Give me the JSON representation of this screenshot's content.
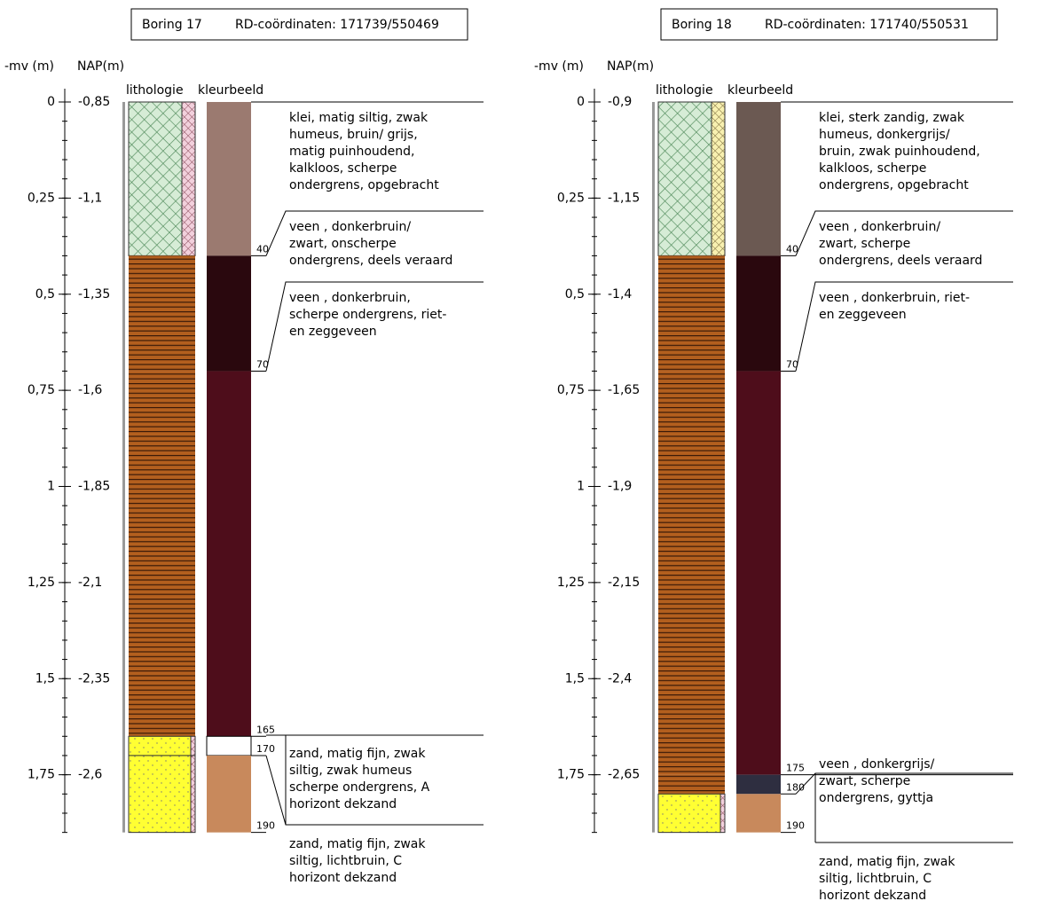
{
  "borings": [
    {
      "name": "Boring 17",
      "coords": "RD-coördinaten: 171739/550469",
      "mv_header": "-mv (m)",
      "nap_header": "NAP(m)",
      "lith_header": "lithologie",
      "color_header": "kleurbeeld",
      "mv_ticks": [
        "0",
        "0,25",
        "0,5",
        "0,75",
        "1",
        "1,25",
        "1,5",
        "1,75"
      ],
      "nap_ticks": [
        "-0,85",
        "-1,1",
        "-1,35",
        "-1,6",
        "-1,85",
        "-2,1",
        "-2,35",
        "-2,6"
      ],
      "layers": [
        {
          "bottom": 40,
          "lith": "clay-pink",
          "color": "#9b7a70"
        },
        {
          "bottom": 70,
          "lith": "peat",
          "color": "#2a080e"
        },
        {
          "bottom": 165,
          "lith": "peat",
          "color": "#4e0d1b"
        },
        {
          "bottom": 170,
          "lith": "sand-strip",
          "color": "#ffffff"
        },
        {
          "bottom": 190,
          "lith": "sand",
          "color": "#c8895c"
        }
      ],
      "descriptions": [
        [
          "klei, matig siltig, zwak",
          "humeus, bruin/ grijs,",
          "matig puinhoudend,",
          "kalkloos, scherpe",
          "ondergrens, opgebracht"
        ],
        [
          "veen , donkerbruin/",
          "zwart, onscherpe",
          "ondergrens, deels veraard"
        ],
        [
          "veen , donkerbruin,",
          "scherpe ondergrens, riet-",
          "en zeggeveen"
        ],
        [
          "zand, matig fijn, zwak",
          "siltig, zwak humeus",
          "scherpe ondergrens, A",
          "horizont dekzand"
        ],
        [
          "zand, matig fijn, zwak",
          "siltig, lichtbruin, C",
          "horizont dekzand"
        ]
      ]
    },
    {
      "name": "Boring 18",
      "coords": "RD-coördinaten: 171740/550531",
      "mv_header": "-mv (m)",
      "nap_header": "NAP(m)",
      "lith_header": "lithologie",
      "color_header": "kleurbeeld",
      "mv_ticks": [
        "0",
        "0,25",
        "0,5",
        "0,75",
        "1",
        "1,25",
        "1,5",
        "1,75"
      ],
      "nap_ticks": [
        "-0,9",
        "-1,15",
        "-1,4",
        "-1,65",
        "-1,9",
        "-2,15",
        "-2,4",
        "-2,65"
      ],
      "layers": [
        {
          "bottom": 40,
          "lith": "clay-yellow",
          "color": "#6b5952"
        },
        {
          "bottom": 70,
          "lith": "peat",
          "color": "#2a080e"
        },
        {
          "bottom": 175,
          "lith": "peat",
          "color": "#4e0d1b"
        },
        {
          "bottom": 180,
          "lith": "peat",
          "color": "#2e2e40"
        },
        {
          "bottom": 190,
          "lith": "sand",
          "color": "#c8895c"
        }
      ],
      "descriptions": [
        [
          "klei, sterk zandig, zwak",
          "humeus, donkergrijs/",
          "bruin, zwak puinhoudend,",
          "kalkloos, scherpe",
          "ondergrens, opgebracht"
        ],
        [
          "veen , donkerbruin/",
          "zwart, scherpe",
          "ondergrens, deels veraard"
        ],
        [
          "veen , donkerbruin, riet-",
          "en zeggeveen"
        ],
        [
          "veen , donkergrijs/",
          "zwart, scherpe",
          "ondergrens, gyttja"
        ],
        [
          "zand, matig fijn, zwak",
          "siltig, lichtbruin, C",
          "horizont dekzand"
        ]
      ]
    }
  ]
}
